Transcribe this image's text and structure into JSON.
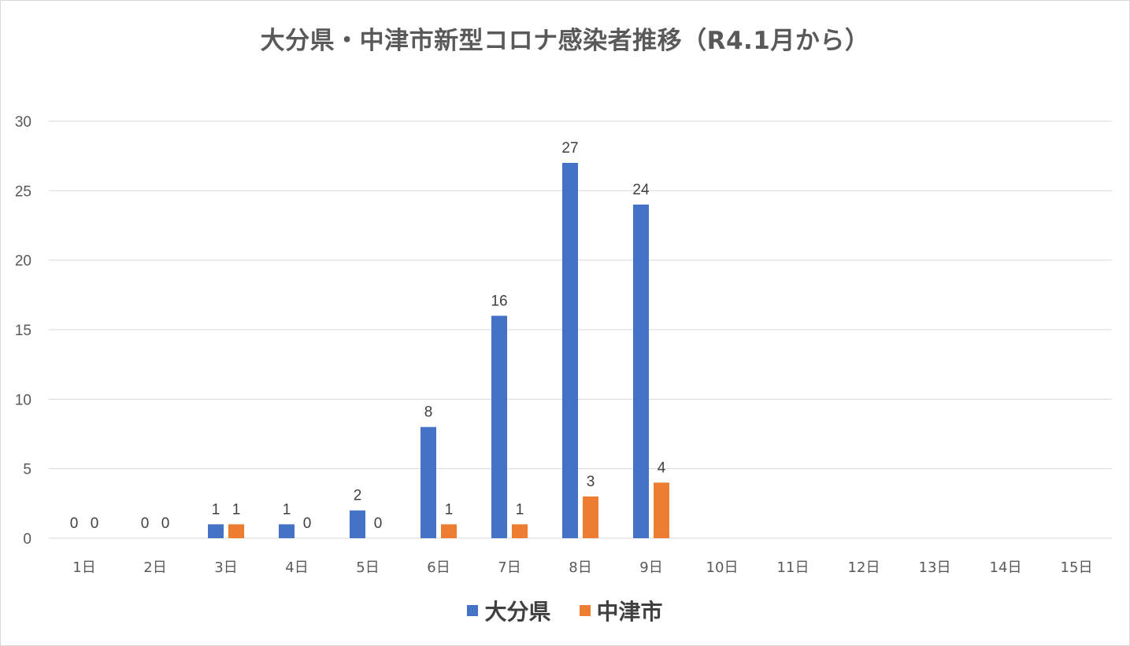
{
  "chart_data": {
    "type": "bar",
    "title": "大分県・中津市新型コロナ感染者推移（R4.1月から）",
    "categories": [
      "1日",
      "2日",
      "3日",
      "4日",
      "5日",
      "6日",
      "7日",
      "8日",
      "9日",
      "10日",
      "11日",
      "12日",
      "13日",
      "14日",
      "15日"
    ],
    "series": [
      {
        "name": "大分県",
        "color": "#4472c4",
        "values": [
          0,
          0,
          1,
          1,
          2,
          8,
          16,
          27,
          24,
          null,
          null,
          null,
          null,
          null,
          null
        ]
      },
      {
        "name": "中津市",
        "color": "#ed7d31",
        "values": [
          0,
          0,
          1,
          0,
          0,
          1,
          1,
          3,
          4,
          null,
          null,
          null,
          null,
          null,
          null
        ]
      }
    ],
    "ylim": [
      0,
      30
    ],
    "yticks": [
      0,
      5,
      10,
      15,
      20,
      25,
      30
    ],
    "grid": true,
    "legend_position": "bottom",
    "data_labels": true
  }
}
